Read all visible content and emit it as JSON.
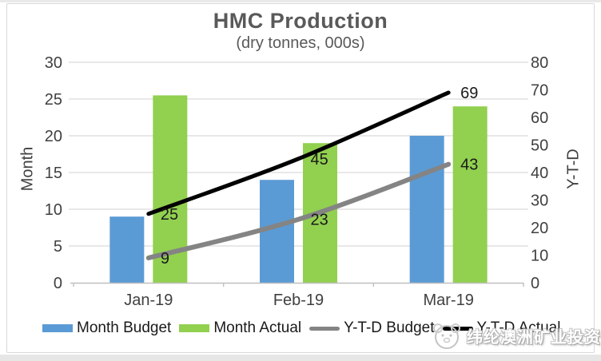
{
  "chart_data": {
    "type": "combo-bar-line",
    "title": "HMC Production",
    "subtitle": "(dry tonnes, 000s)",
    "categories": [
      "Jan-19",
      "Feb-19",
      "Mar-19"
    ],
    "series": [
      {
        "name": "Month Budget",
        "type": "bar",
        "axis": "left",
        "color": "#5B9BD5",
        "values": [
          9,
          14,
          20
        ]
      },
      {
        "name": "Month Actual",
        "type": "bar",
        "axis": "left",
        "color": "#92D050",
        "values": [
          25.5,
          19,
          24
        ]
      },
      {
        "name": "Y-T-D Budget",
        "type": "line",
        "axis": "right",
        "color": "#848484",
        "values": [
          9,
          23,
          43
        ],
        "data_labels": [
          "9",
          "23",
          "43"
        ]
      },
      {
        "name": "Y-T-D Actual",
        "type": "line",
        "axis": "right",
        "color": "#000000",
        "values": [
          25,
          45,
          69
        ],
        "data_labels": [
          "25",
          "45",
          "69"
        ]
      }
    ],
    "left_axis": {
      "label": "Month",
      "min": 0,
      "max": 30,
      "step": 5,
      "ticks": [
        0,
        5,
        10,
        15,
        20,
        25,
        30
      ]
    },
    "right_axis": {
      "label": "Y-T-D",
      "min": 0,
      "max": 80,
      "step": 10,
      "ticks": [
        0,
        10,
        20,
        30,
        40,
        50,
        60,
        70,
        80
      ]
    },
    "grid": true,
    "legend_position": "bottom",
    "colors": {
      "gridline": "#D9D9D9",
      "axis_line": "#BFBFBF",
      "title": "#595959",
      "tick_label": "#404040",
      "data_label": "#1a1a1a"
    }
  },
  "watermark": {
    "text": "纬纶澳洲矿业投资"
  }
}
